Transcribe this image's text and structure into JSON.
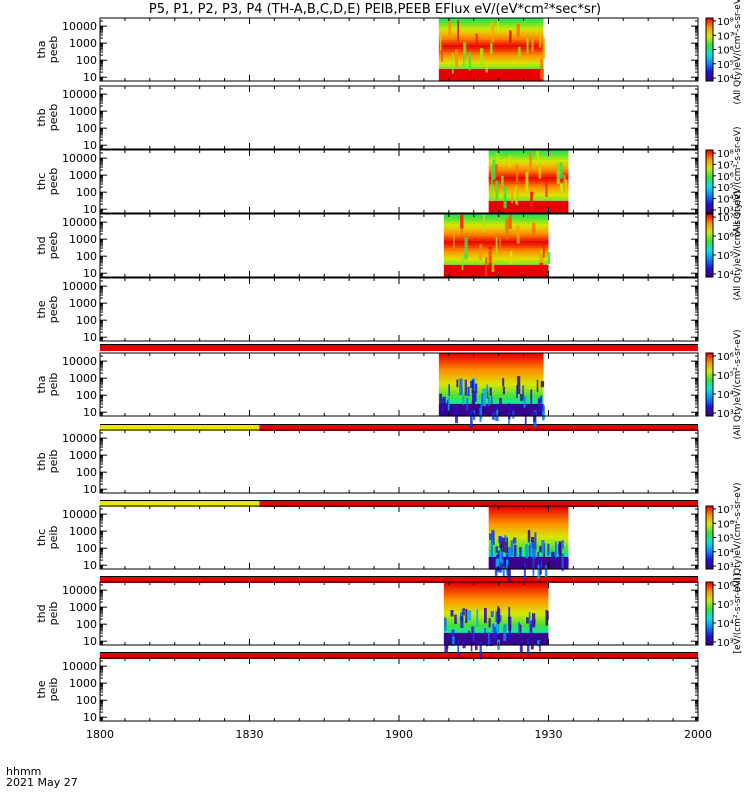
{
  "title": "P5, P1, P2, P3, P4 (TH-A,B,C,D,E) PEIB,PEEB EFlux eV/(eV*cm²*sec*sr)",
  "footer": {
    "format": "hhmm",
    "date": "2021 May 27"
  },
  "colors": {
    "stop": [
      "#40007a",
      "#1f10e0",
      "#0090ff",
      "#00e8e0",
      "#3ee03e",
      "#d8e800",
      "#ff8c00",
      "#e80000"
    ]
  },
  "chart_data": {
    "type": "heatmap",
    "x_axis": {
      "range": [
        "1800",
        "2000"
      ],
      "ticks": [
        "1800",
        "1830",
        "1900",
        "1930",
        "2000"
      ]
    },
    "y_ticks": [
      "10",
      "100",
      "1000",
      "10000"
    ],
    "panels": [
      {
        "ylabel": [
          "tha",
          "peeb"
        ],
        "t_start": "1908",
        "t_end": "1929",
        "colorbar": true,
        "cbar_ticks": [
          "10⁴",
          "10⁵",
          "10⁶",
          "10⁷",
          "10⁸"
        ],
        "cbar_label": "(All Qty)eV/(cm²-s-sr-eV)",
        "cmax_exp": 8,
        "cmin_exp": 3.6,
        "noise": false
      },
      {
        "ylabel": [
          "thb",
          "peeb"
        ],
        "colorbar": false
      },
      {
        "ylabel": [
          "thc",
          "peeb"
        ],
        "t_start": "1918",
        "t_end": "1934",
        "colorbar": true,
        "cbar_ticks": [
          "10³",
          "10⁴",
          "10⁵",
          "10⁶",
          "10⁷",
          "10⁸"
        ],
        "cbar_label": "(All Qty)eV/(cm²-s-sr-eV)",
        "cmax_exp": 8,
        "cmin_exp": 2.6,
        "noise": false
      },
      {
        "ylabel": [
          "thd",
          "peeb"
        ],
        "t_start": "1909",
        "t_end": "1930",
        "colorbar": true,
        "cbar_ticks": [
          "10⁴",
          "10⁵",
          "10⁶",
          "10⁷"
        ],
        "cbar_label": "(All Qty)eV/(cm²-s-sr-eV)",
        "cmax_exp": 8,
        "cmin_exp": 3.4,
        "noise": false
      },
      {
        "ylabel": [
          "the",
          "peeb"
        ],
        "colorbar": false
      },
      {
        "ylabel": [
          "tha",
          "peib"
        ],
        "t_start": "1908",
        "t_end": "1929",
        "colorbar": true,
        "cbar_ticks": [
          "10³",
          "10⁴",
          "10⁵",
          "10⁶"
        ],
        "cbar_label": "(All Qty)eV/(cm²-s-sr-eV)",
        "cmax_exp": 6,
        "cmin_exp": 2.6,
        "noise": true
      },
      {
        "ylabel": [
          "thb",
          "peib"
        ],
        "colorbar": false
      },
      {
        "ylabel": [
          "thc",
          "peib"
        ],
        "t_start": "1918",
        "t_end": "1934",
        "colorbar": true,
        "cbar_ticks": [
          "10³",
          "10⁴",
          "10⁵",
          "10⁶",
          "10⁷"
        ],
        "cbar_label": "(All Qty)eV/(cm²-s-sr-eV)",
        "cmax_exp": 7,
        "cmin_exp": 2.6,
        "noise": true
      },
      {
        "ylabel": [
          "thd",
          "peib"
        ],
        "t_start": "1909",
        "t_end": "1930",
        "colorbar": true,
        "cbar_ticks": [
          "10³",
          "10⁴",
          "10⁵",
          "10⁶"
        ],
        "cbar_label": "[eV/(cm²-s-sr-eV)]",
        "cmax_exp": 6,
        "cmin_exp": 2.6,
        "noise": true
      },
      {
        "ylabel": [
          "the",
          "peib"
        ],
        "colorbar": false
      }
    ],
    "mode_bars": [
      {
        "after_panel": 5,
        "segments": [
          {
            "from": "1800",
            "to": "2000",
            "color": "#e80000"
          }
        ]
      },
      {
        "after_panel": 6,
        "segments": [
          {
            "from": "1800",
            "to": "1832",
            "color": "#e8e800"
          },
          {
            "from": "1832",
            "to": "2000",
            "color": "#e80000"
          }
        ]
      },
      {
        "after_panel": 7,
        "segments": [
          {
            "from": "1800",
            "to": "1832",
            "color": "#e8e800"
          },
          {
            "from": "1832",
            "to": "2000",
            "color": "#e80000"
          }
        ]
      },
      {
        "after_panel": 8,
        "segments": [
          {
            "from": "1800",
            "to": "2000",
            "color": "#e80000"
          }
        ]
      },
      {
        "after_panel": 9,
        "segments": [
          {
            "from": "1800",
            "to": "2000",
            "color": "#e80000"
          }
        ]
      }
    ]
  }
}
